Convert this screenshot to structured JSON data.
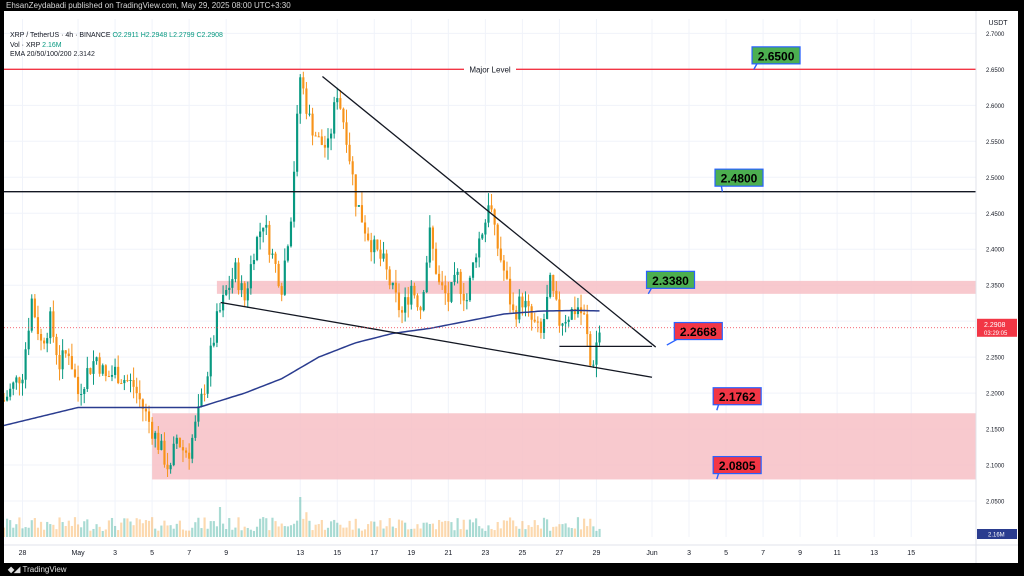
{
  "header": {
    "publisher": "EhsanZeydabadi published on TradingView.com, May 29, 2025 08:00 UTC+3:30"
  },
  "legend": {
    "symbol": "XRP / TetherUS · 4h · BINANCE",
    "o": "O2.2911",
    "h": "H2.2948",
    "l": "L2.2799",
    "c": "C2.2908",
    "vol_label": "Vol · XRP",
    "vol_value": "2.16M",
    "ema_label": "EMA 20/50/100/200",
    "ema_value": "2.3142"
  },
  "footer": {
    "brand": "TradingView"
  },
  "chart_data": {
    "type": "candlestick",
    "symbol": "XRP / TetherUS",
    "interval": "4h",
    "exchange": "BINANCE",
    "currency_label": "USDT",
    "price_axis": {
      "range": [
        2.0,
        2.72
      ],
      "ticks": [
        "2.7000",
        "2.6500",
        "2.6000",
        "2.5500",
        "2.5000",
        "2.4500",
        "2.4000",
        "2.3500",
        "2.3000",
        "2.2500",
        "2.2000",
        "2.1500",
        "2.1000",
        "2.0500"
      ]
    },
    "time_axis": {
      "range": [
        -1,
        51.5
      ],
      "ticks": [
        {
          "day": 0,
          "label": "28"
        },
        {
          "day": 3,
          "label": "May"
        },
        {
          "day": 5,
          "label": "3"
        },
        {
          "day": 7,
          "label": "5"
        },
        {
          "day": 9,
          "label": "7"
        },
        {
          "day": 11,
          "label": "9"
        },
        {
          "day": 15,
          "label": "13"
        },
        {
          "day": 17,
          "label": "15"
        },
        {
          "day": 19,
          "label": "17"
        },
        {
          "day": 21,
          "label": "19"
        },
        {
          "day": 23,
          "label": "21"
        },
        {
          "day": 25,
          "label": "23"
        },
        {
          "day": 27,
          "label": "25"
        },
        {
          "day": 29,
          "label": "27"
        },
        {
          "day": 31,
          "label": "29"
        },
        {
          "day": 34,
          "label": "Jun"
        },
        {
          "day": 36,
          "label": "3"
        },
        {
          "day": 38,
          "label": "5"
        },
        {
          "day": 40,
          "label": "7"
        },
        {
          "day": 42,
          "label": "9"
        },
        {
          "day": 44,
          "label": "11"
        },
        {
          "day": 46,
          "label": "13"
        },
        {
          "day": 48,
          "label": "15"
        }
      ]
    },
    "price_key_days": [
      [
        -1.0,
        2.19
      ],
      [
        0.0,
        2.23
      ],
      [
        0.5,
        2.33
      ],
      [
        1.0,
        2.27
      ],
      [
        1.5,
        2.3
      ],
      [
        2.0,
        2.24
      ],
      [
        2.5,
        2.26
      ],
      [
        3.0,
        2.2
      ],
      [
        3.5,
        2.23
      ],
      [
        4.0,
        2.25
      ],
      [
        4.5,
        2.22
      ],
      [
        5.0,
        2.23
      ],
      [
        6.0,
        2.21
      ],
      [
        6.5,
        2.18
      ],
      [
        7.0,
        2.15
      ],
      [
        7.5,
        2.12
      ],
      [
        8.0,
        2.09
      ],
      [
        8.3,
        2.14
      ],
      [
        8.7,
        2.12
      ],
      [
        9.0,
        2.12
      ],
      [
        9.5,
        2.17
      ],
      [
        10.0,
        2.23
      ],
      [
        10.5,
        2.3
      ],
      [
        11.0,
        2.34
      ],
      [
        11.5,
        2.37
      ],
      [
        12.0,
        2.33
      ],
      [
        12.5,
        2.4
      ],
      [
        13.0,
        2.44
      ],
      [
        13.5,
        2.39
      ],
      [
        14.0,
        2.35
      ],
      [
        14.5,
        2.45
      ],
      [
        15.0,
        2.64
      ],
      [
        15.5,
        2.58
      ],
      [
        16.0,
        2.55
      ],
      [
        16.5,
        2.54
      ],
      [
        17.0,
        2.62
      ],
      [
        17.5,
        2.56
      ],
      [
        18.0,
        2.47
      ],
      [
        18.5,
        2.43
      ],
      [
        19.0,
        2.4
      ],
      [
        19.5,
        2.38
      ],
      [
        20.0,
        2.34
      ],
      [
        20.5,
        2.31
      ],
      [
        21.0,
        2.35
      ],
      [
        21.5,
        2.32
      ],
      [
        22.0,
        2.42
      ],
      [
        22.5,
        2.35
      ],
      [
        23.0,
        2.33
      ],
      [
        23.5,
        2.36
      ],
      [
        24.0,
        2.33
      ],
      [
        24.5,
        2.4
      ],
      [
        25.0,
        2.44
      ],
      [
        25.2,
        2.475
      ],
      [
        25.5,
        2.42
      ],
      [
        26.0,
        2.37
      ],
      [
        26.5,
        2.31
      ],
      [
        27.0,
        2.33
      ],
      [
        27.5,
        2.3
      ],
      [
        28.0,
        2.28
      ],
      [
        28.5,
        2.35
      ],
      [
        29.0,
        2.3
      ],
      [
        29.5,
        2.31
      ],
      [
        30.0,
        2.32
      ],
      [
        30.4,
        2.3
      ],
      [
        30.7,
        2.23
      ],
      [
        31.0,
        2.27
      ],
      [
        31.2,
        2.29
      ]
    ],
    "ema200_key_days": [
      [
        -1,
        2.155
      ],
      [
        3,
        2.18
      ],
      [
        7,
        2.18
      ],
      [
        9.5,
        2.18
      ],
      [
        12,
        2.2
      ],
      [
        14,
        2.22
      ],
      [
        16,
        2.25
      ],
      [
        18,
        2.27
      ],
      [
        20,
        2.283
      ],
      [
        22,
        2.29
      ],
      [
        24,
        2.3
      ],
      [
        26,
        2.31
      ],
      [
        28,
        2.314
      ],
      [
        30,
        2.315
      ],
      [
        31.2,
        2.3142
      ]
    ],
    "levels": [
      {
        "name": "major-level",
        "price": 2.65,
        "label": "Major Level",
        "color": "#f23645"
      },
      {
        "name": "resistance-248",
        "price": 2.48,
        "color": "#131722"
      }
    ],
    "zones": [
      {
        "name": "supply-zone",
        "from_price": 2.338,
        "to_price": 2.356,
        "from_day": 10.5,
        "color": "#f7c0c6"
      },
      {
        "name": "demand-zone",
        "from_price": 2.08,
        "to_price": 2.172,
        "from_day": 7.0,
        "color": "#f7c0c6"
      }
    ],
    "trendlines": [
      {
        "name": "upper-trendline",
        "from": [
          16.2,
          2.64
        ],
        "to": [
          34.2,
          2.264
        ]
      },
      {
        "name": "lower-trendline",
        "from": [
          10.7,
          2.326
        ],
        "to": [
          34.0,
          2.222
        ]
      },
      {
        "name": "breakout-line",
        "from": [
          29.0,
          2.265
        ],
        "to": [
          34.0,
          2.265
        ]
      }
    ],
    "callouts": [
      {
        "name": "callout-2-6500",
        "text": "2.6500",
        "price": 2.65,
        "day": 40.7,
        "anchor_day": 39.5,
        "anchor_price": 2.65,
        "bg": "#4caf50"
      },
      {
        "name": "callout-2-4800",
        "text": "2.4800",
        "price": 2.48,
        "day": 38.7,
        "anchor_day": 37.8,
        "anchor_price": 2.48,
        "bg": "#4caf50"
      },
      {
        "name": "callout-2-3380",
        "text": "2.3380",
        "price": 2.338,
        "day": 35.0,
        "anchor_day": 33.8,
        "anchor_price": 2.338,
        "bg": "#4caf50"
      },
      {
        "name": "callout-2-2668",
        "text": "2.2668",
        "price": 2.2668,
        "day": 36.5,
        "anchor_day": 34.8,
        "anchor_price": 2.2668,
        "bg": "#f23645"
      },
      {
        "name": "callout-2-1762",
        "text": "2.1762",
        "price": 2.1762,
        "day": 38.6,
        "anchor_day": 37.5,
        "anchor_price": 2.1762,
        "bg": "#f23645"
      },
      {
        "name": "callout-2-0805",
        "text": "2.0805",
        "price": 2.0805,
        "day": 38.6,
        "anchor_day": 37.5,
        "anchor_price": 2.0805,
        "bg": "#f23645"
      }
    ],
    "current_price": {
      "price": 2.2908,
      "label": "2.2908",
      "countdown": "03:29:05",
      "color": "#f23645"
    },
    "volume_label": "2.16M",
    "colors": {
      "up": "#089981",
      "down": "#f7931a",
      "ema": "#2a3c8f",
      "grid": "#f0f3fa",
      "axis_text": "#131722"
    }
  }
}
